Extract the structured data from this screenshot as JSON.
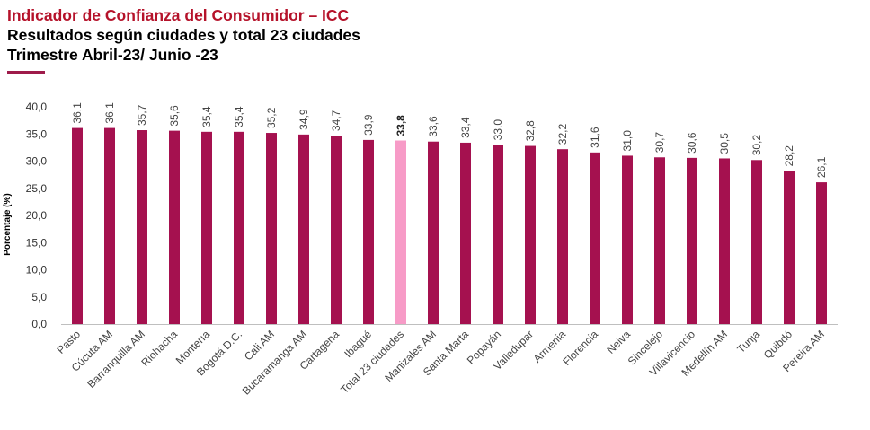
{
  "header": {
    "title": "Indicador de Confianza del Consumidor – ICC",
    "subtitle": "Resultados según ciudades y total 23 ciudades",
    "period": "Trimestre Abril-23/ Junio -23"
  },
  "colors": {
    "title": "#B5122A",
    "rule": "#9E1B4A",
    "bar": "#A5114F",
    "highlight_bar": "#F79BC7",
    "axis": "#BFBFBF"
  },
  "chart_data": {
    "type": "bar",
    "title": "",
    "xlabel": "",
    "ylabel": "Porcentaje (%)",
    "ylim": [
      0,
      40
    ],
    "yticks": [
      "0,0",
      "5,0",
      "10,0",
      "15,0",
      "20,0",
      "25,0",
      "30,0",
      "35,0",
      "40,0"
    ],
    "grid": false,
    "legend": "none",
    "categories": [
      "Pasto",
      "Cúcuta AM",
      "Barranquilla AM",
      "Riohacha",
      "Montería",
      "Bogotá D.C.",
      "Cali AM",
      "Bucaramanga AM",
      "Cartagena",
      "Ibagué",
      "Total 23 ciudades",
      "Manizales AM",
      "Santa Marta",
      "Popayán",
      "Valledupar",
      "Armenia",
      "Florencia",
      "Neiva",
      "Sincelejo",
      "Villavicencio",
      "Medellín AM",
      "Tunja",
      "Quibdó",
      "Pereira AM"
    ],
    "values": [
      36.1,
      36.1,
      35.7,
      35.6,
      35.4,
      35.4,
      35.2,
      34.9,
      34.7,
      33.9,
      33.8,
      33.6,
      33.4,
      33.0,
      32.8,
      32.2,
      31.6,
      31.0,
      30.7,
      30.6,
      30.5,
      30.2,
      28.2,
      26.1
    ],
    "value_labels": [
      "36,1",
      "36,1",
      "35,7",
      "35,6",
      "35,4",
      "35,4",
      "35,2",
      "34,9",
      "34,7",
      "33,9",
      "33,8",
      "33,6",
      "33,4",
      "33,0",
      "32,8",
      "32,2",
      "31,6",
      "31,0",
      "30,7",
      "30,6",
      "30,5",
      "30,2",
      "28,2",
      "26,1"
    ],
    "highlight_category": "Total 23 ciudades"
  }
}
